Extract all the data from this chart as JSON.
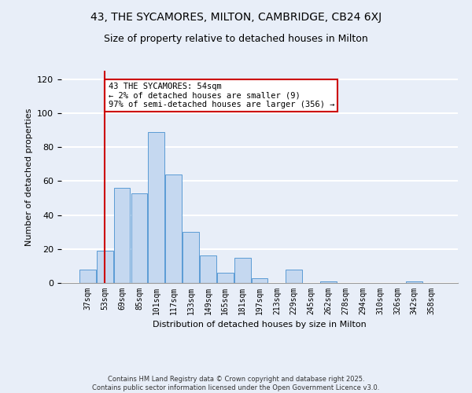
{
  "title": "43, THE SYCAMORES, MILTON, CAMBRIDGE, CB24 6XJ",
  "subtitle": "Size of property relative to detached houses in Milton",
  "xlabel": "Distribution of detached houses by size in Milton",
  "ylabel": "Number of detached properties",
  "bin_labels": [
    "37sqm",
    "53sqm",
    "69sqm",
    "85sqm",
    "101sqm",
    "117sqm",
    "133sqm",
    "149sqm",
    "165sqm",
    "181sqm",
    "197sqm",
    "213sqm",
    "229sqm",
    "245sqm",
    "262sqm",
    "278sqm",
    "294sqm",
    "310sqm",
    "326sqm",
    "342sqm",
    "358sqm"
  ],
  "bar_heights": [
    8,
    19,
    56,
    53,
    89,
    64,
    30,
    16,
    6,
    15,
    3,
    0,
    8,
    0,
    1,
    0,
    0,
    0,
    0,
    1,
    0
  ],
  "bar_color": "#c5d8f0",
  "bar_edge_color": "#5b9bd5",
  "vline_x": 1,
  "vline_color": "#cc0000",
  "annotation_text": "43 THE SYCAMORES: 54sqm\n← 2% of detached houses are smaller (9)\n97% of semi-detached houses are larger (356) →",
  "annotation_box_color": "#ffffff",
  "annotation_box_edge": "#cc0000",
  "ylim": [
    0,
    125
  ],
  "yticks": [
    0,
    20,
    40,
    60,
    80,
    100,
    120
  ],
  "footnote": "Contains HM Land Registry data © Crown copyright and database right 2025.\nContains public sector information licensed under the Open Government Licence v3.0.",
  "bg_color": "#e8eef8",
  "plot_bg_color": "#e8eef8",
  "grid_color": "#ffffff"
}
